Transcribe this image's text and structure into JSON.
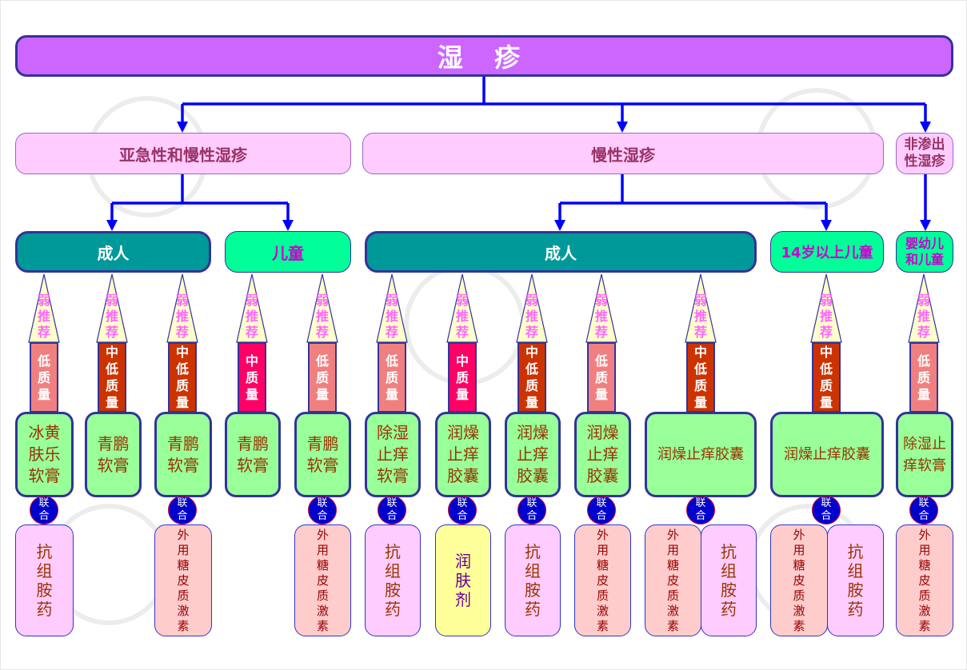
{
  "title": "湿 疹",
  "colors": {
    "title": "#CC66FF",
    "category": "#FFCCFF",
    "adult": "#009999",
    "child": "#00FF99",
    "drug": "#99FF99",
    "arrow": "#0000FF",
    "low": "#F08080",
    "mid_low": "#CC3300",
    "mid": "#FF0066",
    "antihistamine": "#FFCCFF",
    "steroid": "#FFCCCC",
    "emollient": "#FFFF99",
    "join": "#0000CC"
  },
  "categories": [
    "亚急性和慢性湿疹",
    "慢性湿疹",
    "非渗出性湿疹"
  ],
  "groups": [
    "成人",
    "儿童",
    "成人",
    "14岁以上儿童",
    "婴幼儿和儿童"
  ],
  "columns": [
    {
      "recommendation": "弱推荐",
      "quality": "低质量",
      "drug": "冰黄肤乐软膏",
      "combined": "联合",
      "combo": [
        "抗组胺药"
      ]
    },
    {
      "recommendation": "弱推荐",
      "quality": "中低质量",
      "drug": "青鹏软膏",
      "combined": null,
      "combo": []
    },
    {
      "recommendation": "弱推荐",
      "quality": "中低质量",
      "drug": "青鹏软膏",
      "combined": "联合",
      "combo": [
        "外用糖皮质激素"
      ]
    },
    {
      "recommendation": "弱推荐",
      "quality": "中质量",
      "drug": "青鹏软膏",
      "combined": null,
      "combo": []
    },
    {
      "recommendation": "弱推荐",
      "quality": "低质量",
      "drug": "青鹏软膏",
      "combined": "联合",
      "combo": [
        "外用糖皮质激素"
      ]
    },
    {
      "recommendation": "弱推荐",
      "quality": "低质量",
      "drug": "除湿止痒软膏",
      "combined": "联合",
      "combo": [
        "抗组胺药"
      ]
    },
    {
      "recommendation": "弱推荐",
      "quality": "中质量",
      "drug": "润燥止痒胶囊",
      "combined": "联合",
      "combo": [
        "润肤剂"
      ]
    },
    {
      "recommendation": "弱推荐",
      "quality": "中低质量",
      "drug": "润燥止痒胶囊",
      "combined": "联合",
      "combo": [
        "抗组胺药"
      ]
    },
    {
      "recommendation": "弱推荐",
      "quality": "低质量",
      "drug": "润燥止痒胶囊",
      "combined": "联合",
      "combo": [
        "外用糖皮质激素"
      ]
    },
    {
      "recommendation": "弱推荐",
      "quality": "中低质量",
      "drug": "润燥止痒胶囊",
      "combined": "联合",
      "combo": [
        "外用糖皮质激素",
        "抗组胺药"
      ]
    },
    {
      "recommendation": "弱推荐",
      "quality": "中低质量",
      "drug": "润燥止痒胶囊",
      "combined": "联合",
      "combo": [
        "外用糖皮质激素",
        "抗组胺药"
      ]
    },
    {
      "recommendation": "弱推荐",
      "quality": "低质量",
      "drug": "除湿止痒软膏",
      "combined": "联合",
      "combo": [
        "外用糖皮质激素"
      ]
    }
  ]
}
